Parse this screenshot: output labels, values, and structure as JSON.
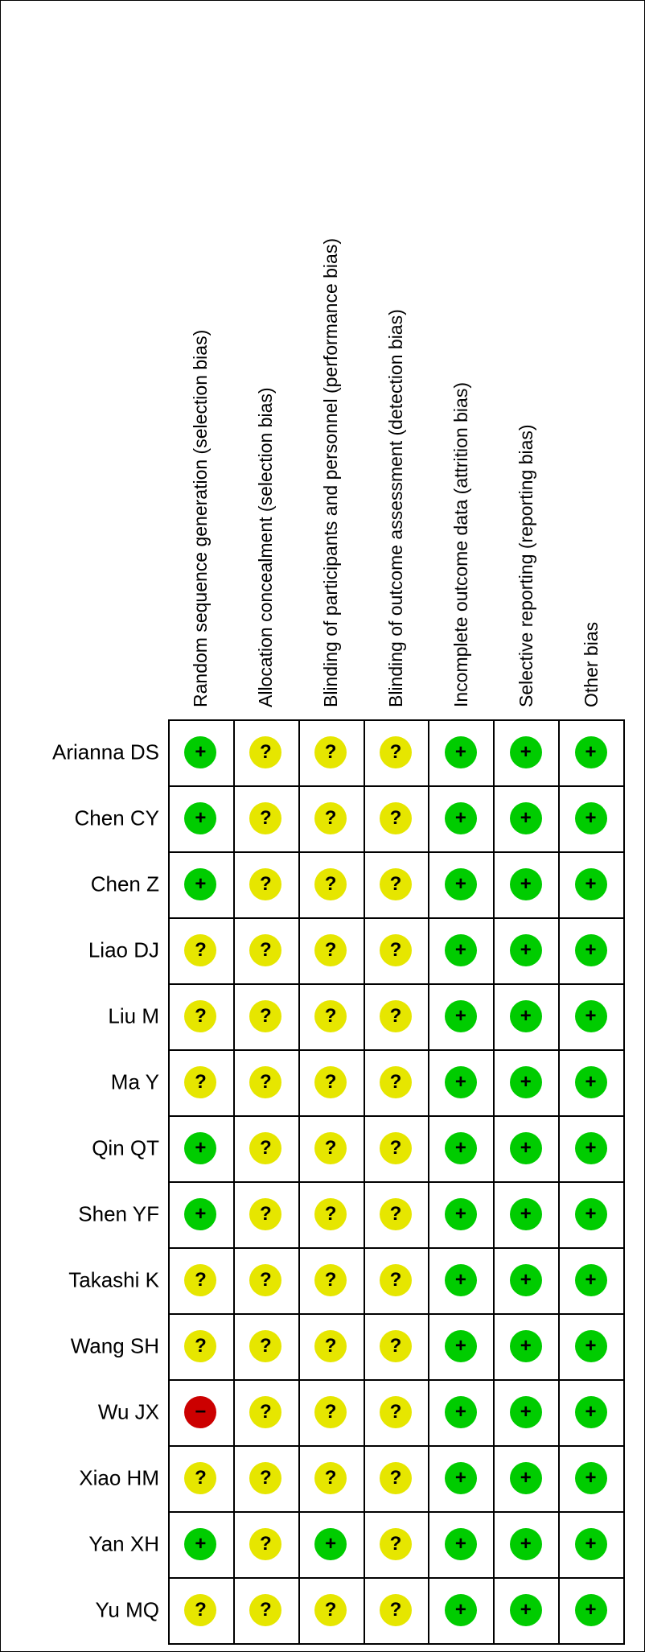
{
  "colors": {
    "low": "#00cc00",
    "unclear": "#e6e600",
    "high": "#cc0000"
  },
  "chart_data": {
    "type": "table",
    "columns": [
      "Random sequence generation (selection bias)",
      "Allocation concealment (selection bias)",
      "Blinding of participants and personnel (performance bias)",
      "Blinding of outcome assessment (detection bias)",
      "Incomplete outcome data (attrition bias)",
      "Selective reporting (reporting bias)",
      "Other bias"
    ],
    "rows": [
      "Arianna DS",
      "Chen CY",
      "Chen Z",
      "Liao DJ",
      "Liu M",
      "Ma Y",
      "Qin QT",
      "Shen YF",
      "Takashi K",
      "Wang SH",
      "Wu JX",
      "Xiao HM",
      "Yan XH",
      "Yu MQ"
    ],
    "symbols": {
      "low": "+",
      "unclear": "?",
      "high": "−"
    },
    "values": [
      [
        "low",
        "unclear",
        "unclear",
        "unclear",
        "low",
        "low",
        "low"
      ],
      [
        "low",
        "unclear",
        "unclear",
        "unclear",
        "low",
        "low",
        "low"
      ],
      [
        "low",
        "unclear",
        "unclear",
        "unclear",
        "low",
        "low",
        "low"
      ],
      [
        "unclear",
        "unclear",
        "unclear",
        "unclear",
        "low",
        "low",
        "low"
      ],
      [
        "unclear",
        "unclear",
        "unclear",
        "unclear",
        "low",
        "low",
        "low"
      ],
      [
        "unclear",
        "unclear",
        "unclear",
        "unclear",
        "low",
        "low",
        "low"
      ],
      [
        "low",
        "unclear",
        "unclear",
        "unclear",
        "low",
        "low",
        "low"
      ],
      [
        "low",
        "unclear",
        "unclear",
        "unclear",
        "low",
        "low",
        "low"
      ],
      [
        "unclear",
        "unclear",
        "unclear",
        "unclear",
        "low",
        "low",
        "low"
      ],
      [
        "unclear",
        "unclear",
        "unclear",
        "unclear",
        "low",
        "low",
        "low"
      ],
      [
        "high",
        "unclear",
        "unclear",
        "unclear",
        "low",
        "low",
        "low"
      ],
      [
        "unclear",
        "unclear",
        "unclear",
        "unclear",
        "low",
        "low",
        "low"
      ],
      [
        "low",
        "unclear",
        "low",
        "unclear",
        "low",
        "low",
        "low"
      ],
      [
        "unclear",
        "unclear",
        "unclear",
        "unclear",
        "low",
        "low",
        "low"
      ]
    ]
  }
}
